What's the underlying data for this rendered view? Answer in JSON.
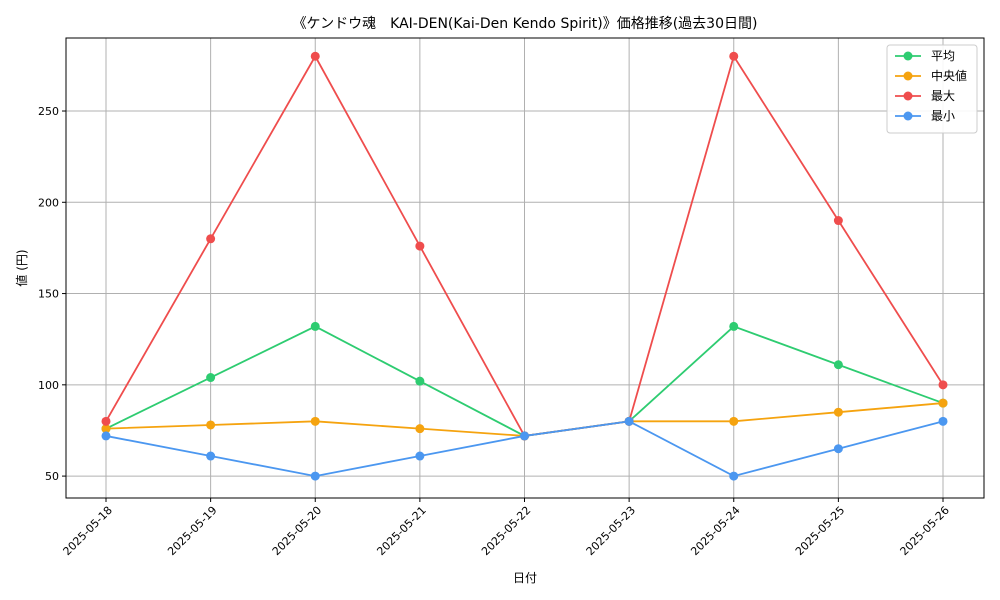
{
  "chart_data": {
    "type": "line",
    "title": "《ケンドウ魂　KAI-DEN(Kai-Den Kendo Spirit)》価格推移(過去30日間)",
    "xlabel": "日付",
    "ylabel": "値 (円)",
    "categories": [
      "2025-05-18",
      "2025-05-19",
      "2025-05-20",
      "2025-05-21",
      "2025-05-22",
      "2025-05-23",
      "2025-05-24",
      "2025-05-25",
      "2025-05-26"
    ],
    "yticks": [
      50,
      100,
      150,
      200,
      250
    ],
    "ylim": [
      38,
      290
    ],
    "grid": true,
    "legend_position": "top-right",
    "series": [
      {
        "name": "平均",
        "color": "#2ecc71",
        "values": [
          76,
          104,
          132,
          102,
          72,
          80,
          132,
          111,
          90
        ]
      },
      {
        "name": "中央値",
        "color": "#f5a30f",
        "values": [
          76,
          78,
          80,
          76,
          72,
          80,
          80,
          85,
          90
        ]
      },
      {
        "name": "最大",
        "color": "#ef4d4d",
        "values": [
          80,
          180,
          280,
          176,
          72,
          80,
          280,
          190,
          100
        ]
      },
      {
        "name": "最小",
        "color": "#4b97f0",
        "values": [
          72,
          61,
          50,
          61,
          72,
          80,
          50,
          65,
          80
        ]
      }
    ]
  }
}
